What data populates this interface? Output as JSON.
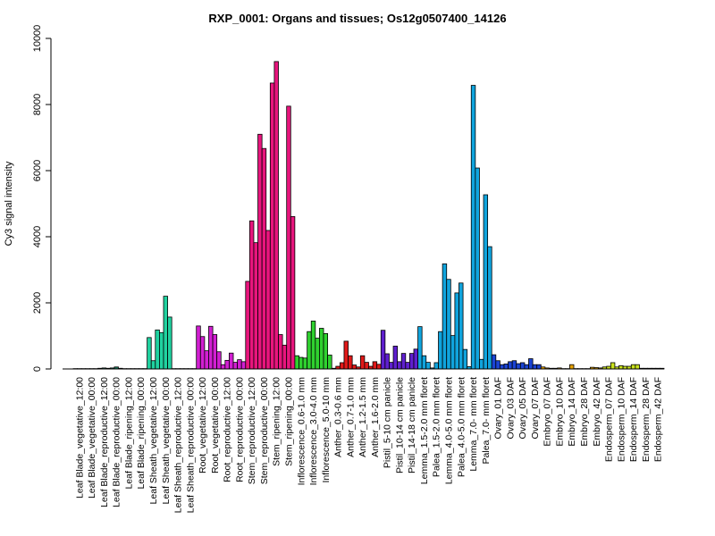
{
  "chart_data": {
    "type": "bar",
    "title": "RXP_0001: Organs and tissues; Os12g0507400_14126",
    "xlabel": "",
    "ylabel": "Cy3 signal intensity",
    "ylim": [
      0,
      10000
    ],
    "yticks": [
      0,
      2000,
      4000,
      6000,
      8000,
      10000
    ],
    "grid": false,
    "legend": "none",
    "labels": [
      "Leaf Blade_vegetative_12:00",
      "Leaf Blade_vegetative_00:00",
      "Leaf Blade_reproductive_12:00",
      "Leaf Blade_reproductive_00:00",
      "Leaf Blade_ripening_12:00",
      "Leaf Blade_ripening_00:00",
      "Leaf Sheath_vegetative_12:00",
      "Leaf Sheath_vegetative_00:00",
      "Leaf Sheath_reproductive_12:00",
      "Leaf Sheath_reproductive_00:00",
      "Root_vegetative_12:00",
      "Root_vegetative_00:00",
      "Root_reproductive_12:00",
      "Root_reproductive_00:00",
      "Stem_reproductive_12:00",
      "Stem_reproductive_00:00",
      "Stem_ripening_12:00",
      "Stem_ripening_00:00",
      "Inflorescence_0.6-1.0 mm",
      "Inflorescence_3.0-4.0 mm",
      "Inflorescence_5.0-10 mm",
      "Anther_0.3-0.6 mm",
      "Anther_0.7-1.0 mm",
      "Anther_1.2-1.5 mm",
      "Anther_1.6-2.0 mm",
      "Pistil_5-10 cm panicle",
      "Pistil_10-14 cm panicle",
      "Pistil_14-18 cm panicle",
      "Lemma_1.5-2.0 mm floret",
      "Palea_1.5-2.0 mm floret",
      "Lemma_4.0-5.0 mm floret",
      "Palea_4.0-5.0 mm floret",
      "Lemma_7.0- mm floret",
      "Palea_7.0- mm floret",
      "Ovary_01 DAF",
      "Ovary_03 DAF",
      "Ovary_05 DAF",
      "Ovary_07 DAF",
      "Embryo_07 DAF",
      "Embryo_10 DAF",
      "Embryo_14 DAF",
      "Embryo_28 DAF",
      "Embryo_42 DAF",
      "Endosperm_07 DAF",
      "Endosperm_10 DAF",
      "Endosperm_14 DAF",
      "Endosperm_28 DAF",
      "Endosperm_42 DAF"
    ],
    "groups": [
      {
        "color": "#1b7a5e",
        "values": [
          10,
          10,
          10
        ]
      },
      {
        "color": "#1b7a5e",
        "values": [
          10,
          10,
          10
        ]
      },
      {
        "color": "#1b7a5e",
        "values": [
          20,
          30,
          20
        ]
      },
      {
        "color": "#1b7a5e",
        "values": [
          30,
          60,
          20
        ]
      },
      {
        "color": "#1b7a5e",
        "values": [
          10,
          10,
          10
        ]
      },
      {
        "color": "#1b7a5e",
        "values": [
          10,
          10,
          10
        ]
      },
      {
        "color": "#20d2a0",
        "values": [
          950,
          250,
          1180
        ]
      },
      {
        "color": "#20d2a0",
        "values": [
          1100,
          2200,
          1570
        ]
      },
      {
        "color": "#1b7a5e",
        "values": [
          10,
          10,
          10
        ]
      },
      {
        "color": "#1b7a5e",
        "values": [
          10,
          10,
          10
        ]
      },
      {
        "color": "#d21fd2",
        "values": [
          1300,
          980,
          550
        ]
      },
      {
        "color": "#d21fd2",
        "values": [
          1290,
          1040,
          520
        ]
      },
      {
        "color": "#d21fd2",
        "values": [
          130,
          260,
          480
        ]
      },
      {
        "color": "#d21fd2",
        "values": [
          200,
          280,
          220
        ]
      },
      {
        "color": "#e8157d",
        "values": [
          2650,
          4480,
          3820
        ]
      },
      {
        "color": "#e8157d",
        "values": [
          7100,
          6670,
          4190
        ]
      },
      {
        "color": "#e8157d",
        "values": [
          8650,
          9300,
          1040
        ]
      },
      {
        "color": "#e8157d",
        "values": [
          720,
          7950,
          4610
        ]
      },
      {
        "color": "#2fd12f",
        "values": [
          400,
          350,
          330
        ]
      },
      {
        "color": "#2fd12f",
        "values": [
          1130,
          1450,
          930
        ]
      },
      {
        "color": "#2fd12f",
        "values": [
          1230,
          1070,
          420
        ]
      },
      {
        "color": "#e01919",
        "values": [
          20,
          80,
          190
        ]
      },
      {
        "color": "#e01919",
        "values": [
          840,
          400,
          120
        ]
      },
      {
        "color": "#e01919",
        "values": [
          60,
          400,
          200
        ]
      },
      {
        "color": "#e01919",
        "values": [
          80,
          220,
          140
        ]
      },
      {
        "color": "#5f1fcf",
        "values": [
          1170,
          460,
          200
        ]
      },
      {
        "color": "#5f1fcf",
        "values": [
          690,
          220,
          470
        ]
      },
      {
        "color": "#5f1fcf",
        "values": [
          200,
          470,
          600
        ]
      },
      {
        "color": "#10a4dd",
        "values": [
          1280,
          400,
          200
        ]
      },
      {
        "color": "#10a4dd",
        "values": [
          30,
          190,
          1130
        ]
      },
      {
        "color": "#10a4dd",
        "values": [
          3180,
          2710,
          1010
        ]
      },
      {
        "color": "#10a4dd",
        "values": [
          2300,
          2600,
          590
        ]
      },
      {
        "color": "#10a4dd",
        "values": [
          70,
          8580,
          6080
        ]
      },
      {
        "color": "#10a4dd",
        "values": [
          290,
          5270,
          3700
        ]
      },
      {
        "color": "#1b44d4",
        "values": [
          430,
          250,
          130
        ]
      },
      {
        "color": "#1b44d4",
        "values": [
          150,
          220,
          250
        ]
      },
      {
        "color": "#1b44d4",
        "values": [
          160,
          190,
          130
        ]
      },
      {
        "color": "#1b44d4",
        "values": [
          310,
          130,
          130
        ]
      },
      {
        "color": "#e6a200",
        "values": [
          60,
          30,
          20
        ]
      },
      {
        "color": "#e6a200",
        "values": [
          20,
          30,
          10
        ]
      },
      {
        "color": "#e6a200",
        "values": [
          10,
          130,
          10
        ]
      },
      {
        "color": "#e6a200",
        "values": [
          10,
          10,
          10
        ]
      },
      {
        "color": "#e6a200",
        "values": [
          50,
          40,
          30
        ]
      },
      {
        "color": "#c9e21c",
        "values": [
          60,
          80,
          190
        ]
      },
      {
        "color": "#c9e21c",
        "values": [
          60,
          100,
          80
        ]
      },
      {
        "color": "#c9e21c",
        "values": [
          80,
          130,
          130
        ]
      },
      {
        "color": "#c9e21c",
        "values": [
          20,
          20,
          20
        ]
      },
      {
        "color": "#c9e21c",
        "values": [
          20,
          20,
          20
        ]
      }
    ]
  }
}
